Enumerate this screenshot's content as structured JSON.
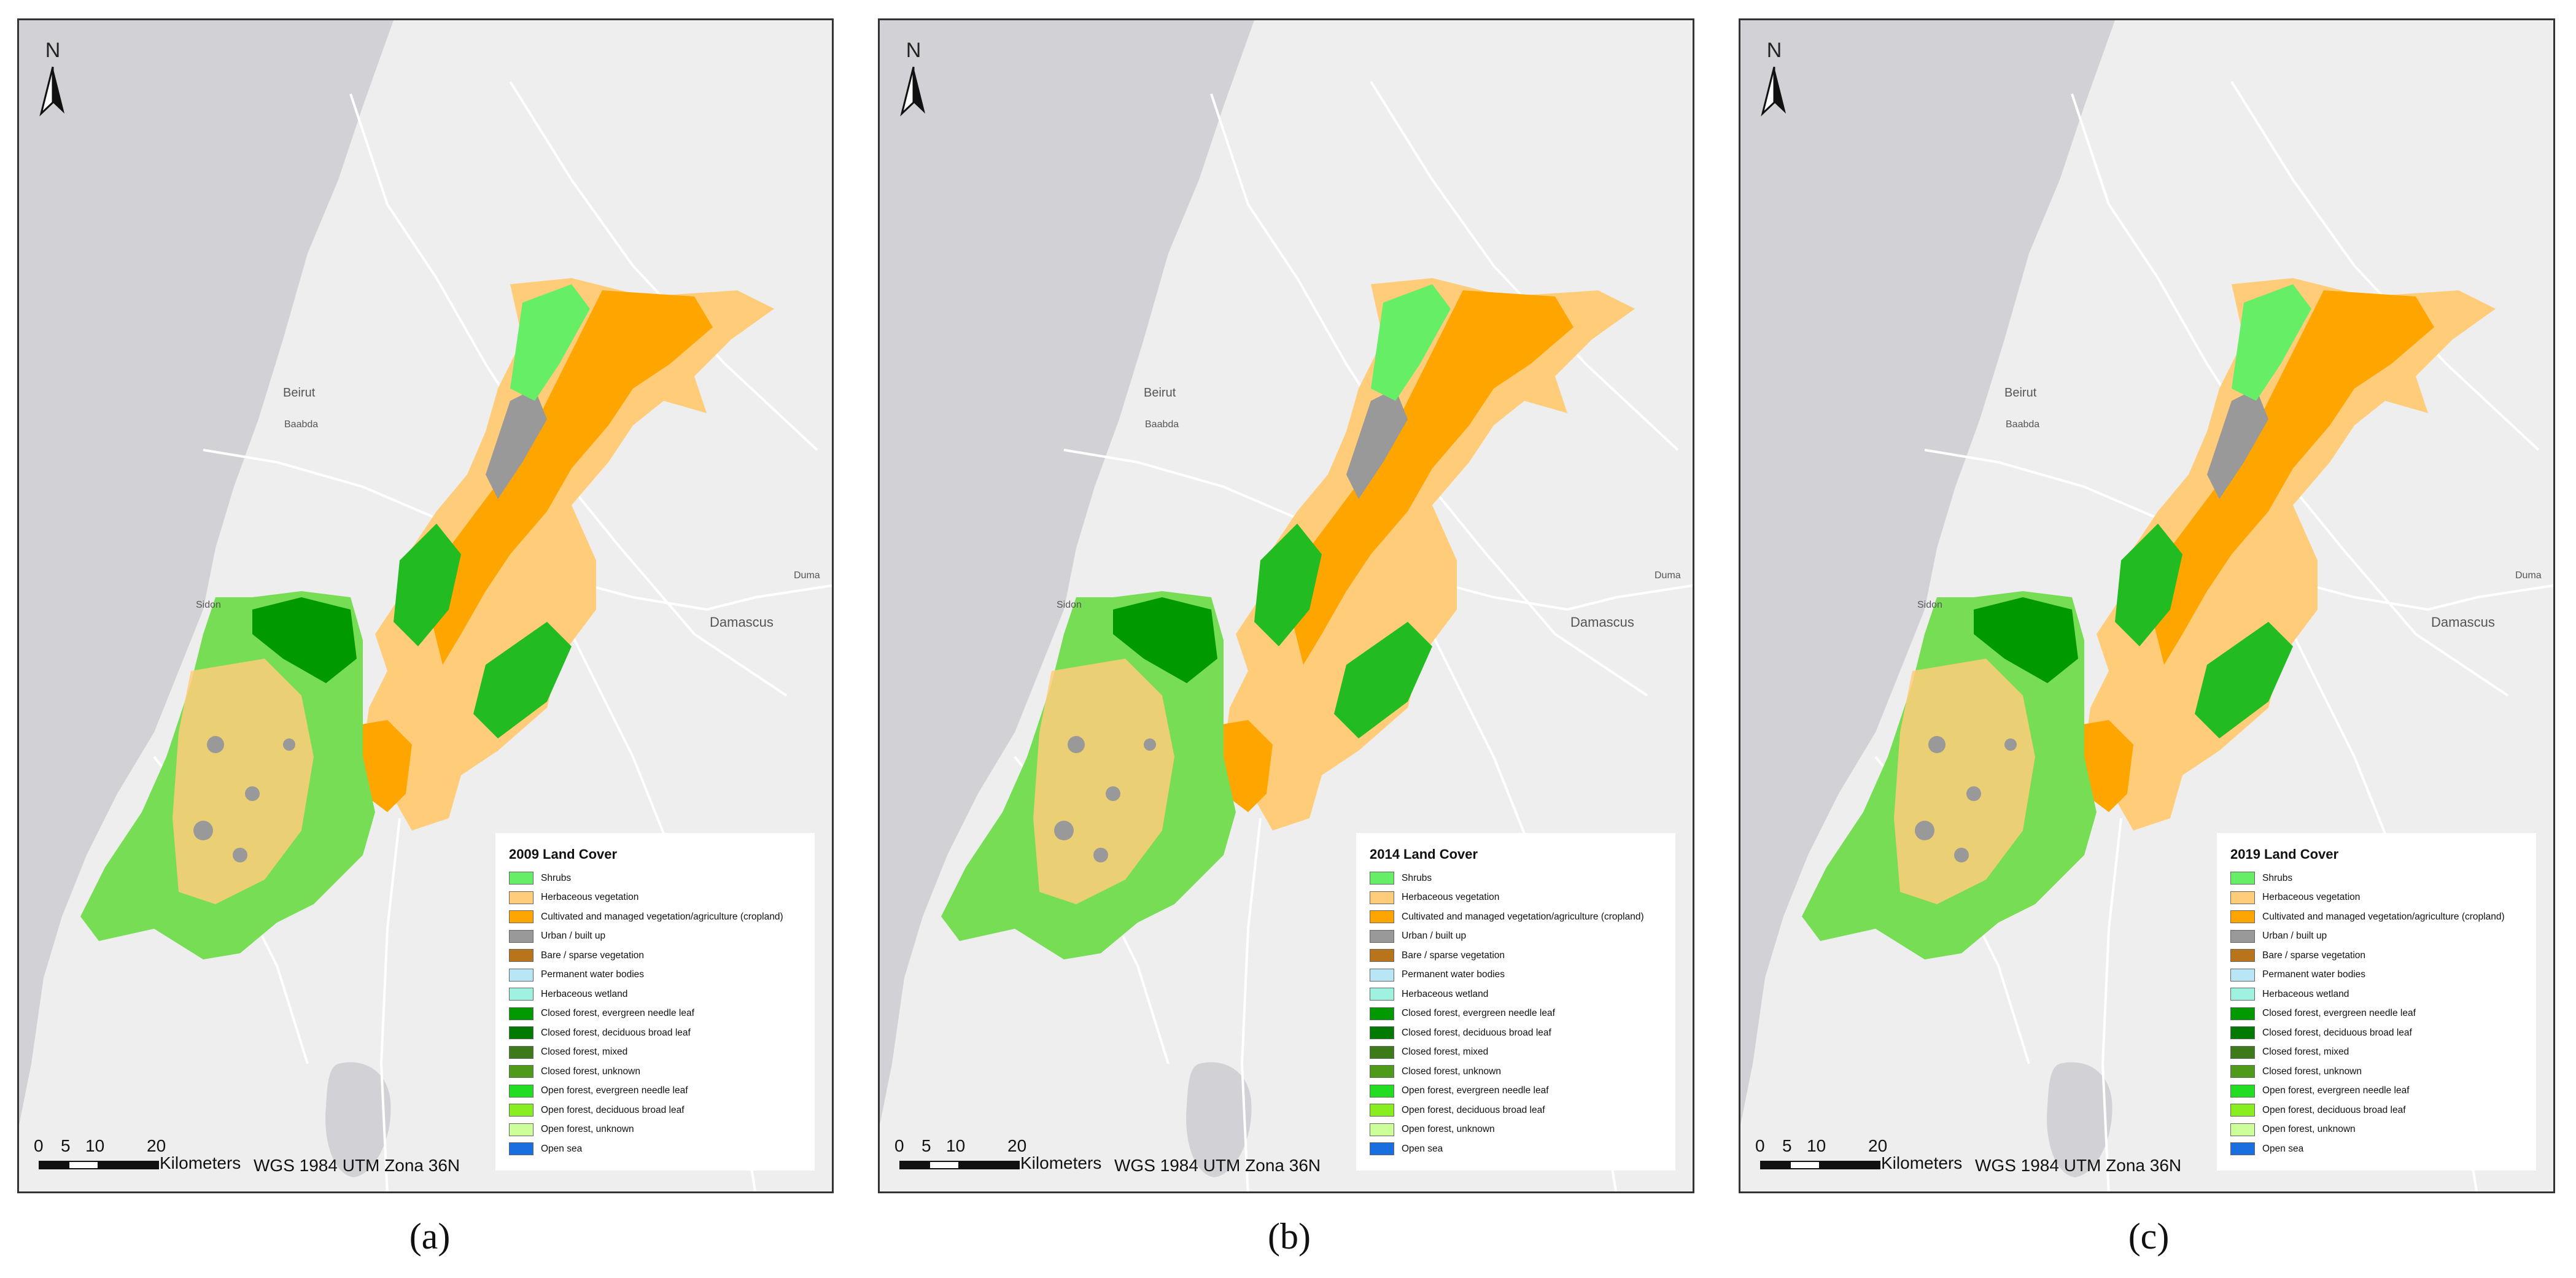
{
  "panels": [
    {
      "legend_title": "2009 Land Cover",
      "caption": "(a)"
    },
    {
      "legend_title": "2014 Land Cover",
      "caption": "(b)"
    },
    {
      "legend_title": "2019 Land Cover",
      "caption": "(c)"
    }
  ],
  "north_label": "N",
  "scale": {
    "ticks": [
      "0",
      "5",
      "10",
      "20"
    ],
    "units": "Kilometers"
  },
  "projection": "WGS 1984 UTM Zona 36N",
  "places": {
    "beirut": "Beirut",
    "baabda": "Baabda",
    "damascus": "Damascus",
    "duma": "Duma",
    "sidon": "Sidon"
  },
  "legend_items": [
    {
      "label": "Shrubs",
      "color": "#66ee66"
    },
    {
      "label": "Herbaceous vegetation",
      "color": "#ffcc7a"
    },
    {
      "label": "Cultivated and managed vegetation/agriculture (cropland)",
      "color": "#ffa500"
    },
    {
      "label": "Urban / built up",
      "color": "#999999"
    },
    {
      "label": "Bare / sparse vegetation",
      "color": "#b8741a"
    },
    {
      "label": "Permanent water bodies",
      "color": "#b8e6f5"
    },
    {
      "label": "Herbaceous wetland",
      "color": "#9ff2e0"
    },
    {
      "label": "Closed forest, evergreen needle leaf",
      "color": "#009a00"
    },
    {
      "label": "Closed forest, deciduous broad leaf",
      "color": "#007a00"
    },
    {
      "label": "Closed forest, mixed",
      "color": "#3d7a1a"
    },
    {
      "label": "Closed forest, unknown",
      "color": "#4f9a1a"
    },
    {
      "label": "Open forest, evergreen needle leaf",
      "color": "#22dd22"
    },
    {
      "label": "Open forest, deciduous broad leaf",
      "color": "#88ee22"
    },
    {
      "label": "Open forest, unknown",
      "color": "#ccff99"
    },
    {
      "label": "Open sea",
      "color": "#1a6fe0"
    }
  ]
}
